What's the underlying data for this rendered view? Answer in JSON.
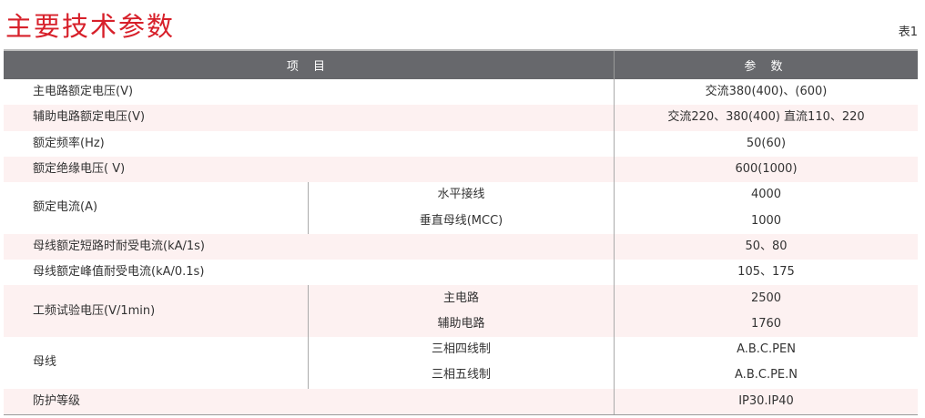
{
  "title": "主要技术参数",
  "table_no": "表1",
  "headers": [
    "项 目",
    "参 数"
  ],
  "rows": [
    {
      "name": "主电路额定电压(V)",
      "value": "交流380(400)、(600)"
    },
    {
      "name": "辅助电路额定电压(V)",
      "value": "交流220、380(400) 直流110、220"
    },
    {
      "name": "额定频率(Hz)",
      "value": "50(60)"
    },
    {
      "name": "额定绝缘电压( V)",
      "value": "600(1000)"
    },
    {
      "name": "额定电流(A)",
      "subs": [
        {
          "sub": "水平接线",
          "value": "4000"
        },
        {
          "sub": "垂直母线(MCC)",
          "value": "1000"
        }
      ]
    },
    {
      "name": "母线额定短路时耐受电流(kA/1s)",
      "value": "50、80"
    },
    {
      "name": "母线额定峰值耐受电流(kA/0.1s)",
      "value": "105、175"
    },
    {
      "name": "工频试验电压(V/1min)",
      "subs": [
        {
          "sub": "主电路",
          "value": "2500"
        },
        {
          "sub": "辅助电路",
          "value": "1760"
        }
      ]
    },
    {
      "name": "母线",
      "subs": [
        {
          "sub": "三相四线制",
          "value": "A.B.C.PEN"
        },
        {
          "sub": "三相五线制",
          "value": "A.B.C.PE.N"
        }
      ]
    },
    {
      "name": "防护等级",
      "value": "IP30.IP40"
    }
  ],
  "colors": {
    "title": "#d7202a",
    "header_bg": "#67686c",
    "stripe": "#fdf1f1"
  }
}
